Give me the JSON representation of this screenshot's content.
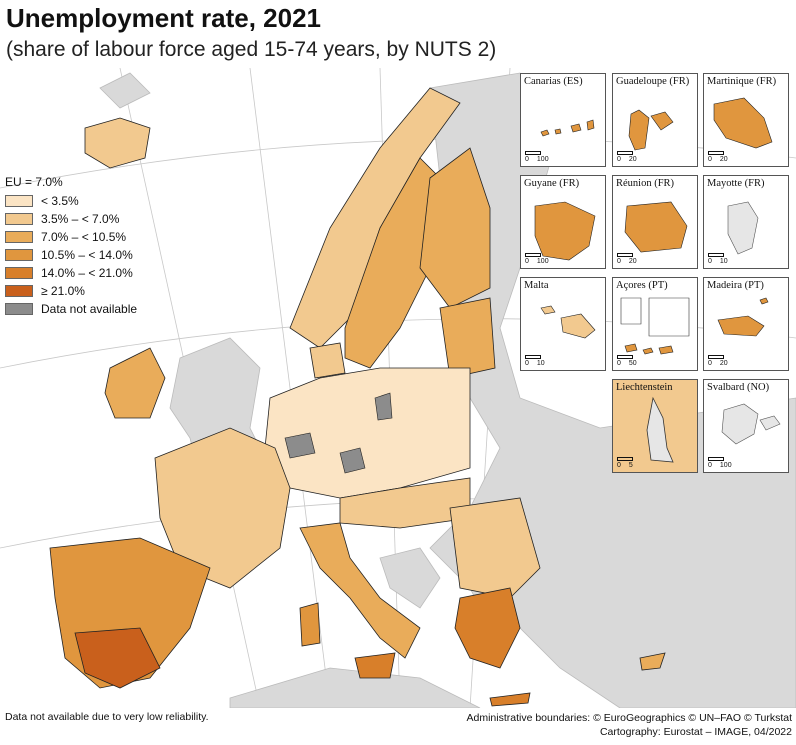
{
  "header": {
    "title": "Unemployment rate, 2021",
    "subtitle": "(share of labour force aged 15-74 years, by NUTS 2)"
  },
  "legend": {
    "title": "EU = 7.0%",
    "items": [
      {
        "label": "< 3.5%",
        "color": "#fbe4c4"
      },
      {
        "label": "3.5% – < 7.0%",
        "color": "#f2c98f"
      },
      {
        "label": "7.0% – < 10.5%",
        "color": "#e9ac5a"
      },
      {
        "label": "10.5% – < 14.0%",
        "color": "#e0963e"
      },
      {
        "label": "14.0% – < 21.0%",
        "color": "#d87f2a"
      },
      {
        "label": "≥ 21.0%",
        "color": "#c9601c"
      },
      {
        "label": "Data not available",
        "color": "#8c8c8c"
      }
    ]
  },
  "insets": [
    {
      "label": "Canarias (ES)",
      "scale": [
        "0",
        "100"
      ]
    },
    {
      "label": "Guadeloupe (FR)",
      "scale": [
        "0",
        "20"
      ]
    },
    {
      "label": "Martinique (FR)",
      "scale": [
        "0",
        "20"
      ]
    },
    {
      "label": "Guyane (FR)",
      "scale": [
        "0",
        "100"
      ]
    },
    {
      "label": "Réunion (FR)",
      "scale": [
        "0",
        "20"
      ]
    },
    {
      "label": "Mayotte (FR)",
      "scale": [
        "0",
        "10"
      ]
    },
    {
      "label": "Malta",
      "scale": [
        "0",
        "10"
      ]
    },
    {
      "label": "Açores (PT)",
      "scale": [
        "0",
        "50"
      ]
    },
    {
      "label": "Madeira (PT)",
      "scale": [
        "0",
        "20"
      ]
    },
    {
      "label": "Liechtenstein",
      "scale": [
        "0",
        "5"
      ]
    },
    {
      "label": "Svalbard (NO)",
      "scale": [
        "0",
        "100"
      ]
    }
  ],
  "footer": {
    "footnote": "Data not available due to very low reliability.",
    "credits_line1": "Administrative boundaries: © EuroGeographics © UN–FAO © Turkstat",
    "credits_line2": "Cartography: Eurostat – IMAGE, 04/2022"
  },
  "colors": {
    "sea": "#ffffff",
    "non_eu_land": "#d9d9d9",
    "graticule": "#c8c8c8",
    "border": "#222222"
  }
}
